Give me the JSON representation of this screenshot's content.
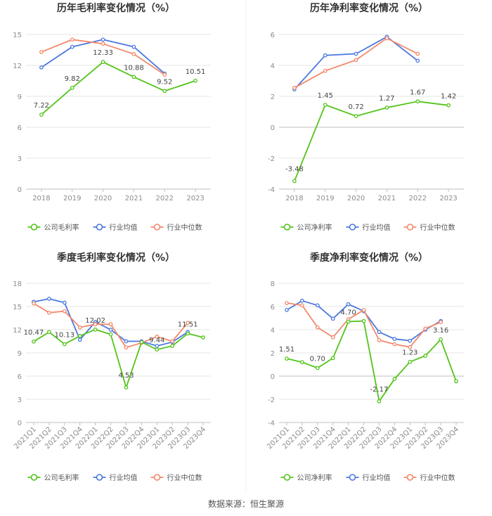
{
  "colors": {
    "company": "#52c41a",
    "industry_avg": "#4a78e0",
    "industry_median": "#f4886a",
    "grid": "#e6e6e6",
    "axis_text": "#8c8c8c",
    "title": "#333333"
  },
  "source": "数据来源：恒生聚源",
  "chart_data": [
    {
      "type": "line",
      "title": "历年毛利率变化情况（%）",
      "categories": [
        "2018",
        "2019",
        "2020",
        "2021",
        "2022",
        "2023"
      ],
      "ylim": [
        0,
        15
      ],
      "yticks": [
        0,
        3,
        6,
        9,
        12,
        15
      ],
      "grid": true,
      "legend_position": "bottom",
      "series": [
        {
          "name": "公司毛利率",
          "values": [
            7.22,
            9.82,
            12.33,
            10.88,
            9.52,
            10.51
          ],
          "labels": [
            "7.22",
            "9.82",
            "12.33",
            "10.88",
            "9.52",
            "10.51"
          ]
        },
        {
          "name": "行业均值",
          "values": [
            11.8,
            13.8,
            14.5,
            13.8,
            11.2,
            null
          ]
        },
        {
          "name": "行业中位数",
          "values": [
            13.3,
            14.5,
            14.1,
            13.1,
            11.1,
            null
          ]
        }
      ]
    },
    {
      "type": "line",
      "title": "历年净利率变化情况（%）",
      "categories": [
        "2018",
        "2019",
        "2020",
        "2021",
        "2022",
        "2023"
      ],
      "ylim": [
        -4,
        6
      ],
      "yticks": [
        -4,
        -2,
        0,
        2,
        4,
        6
      ],
      "grid": true,
      "legend_position": "bottom",
      "series": [
        {
          "name": "公司净利率",
          "values": [
            -3.48,
            1.45,
            0.72,
            1.27,
            1.67,
            1.42
          ],
          "labels": [
            "-3.48",
            "1.45",
            "0.72",
            "1.27",
            "1.67",
            "1.42"
          ]
        },
        {
          "name": "行业均值",
          "values": [
            2.45,
            4.65,
            4.75,
            5.85,
            4.3,
            null
          ]
        },
        {
          "name": "行业中位数",
          "values": [
            2.55,
            3.65,
            4.35,
            5.75,
            4.75,
            null
          ]
        }
      ]
    },
    {
      "type": "line",
      "title": "季度毛利率变化情况（%）",
      "categories": [
        "2021Q1",
        "2021Q2",
        "2021Q3",
        "2021Q4",
        "2022Q1",
        "2022Q2",
        "2022Q3",
        "2022Q4",
        "2023Q1",
        "2023Q2",
        "2023Q3",
        "2023Q4"
      ],
      "ylim": [
        0,
        18
      ],
      "yticks": [
        0,
        3,
        6,
        9,
        12,
        15,
        18
      ],
      "grid": true,
      "legend_position": "bottom",
      "series": [
        {
          "name": "公司毛利率",
          "values": [
            10.47,
            11.7,
            10.13,
            11.2,
            12.02,
            11.4,
            4.53,
            10.4,
            9.44,
            9.9,
            11.51,
            11.0
          ],
          "labels": [
            "10.47",
            "",
            "10.13",
            "",
            "12.02",
            "",
            "4.53",
            "",
            "9.44",
            "",
            "11.51",
            ""
          ]
        },
        {
          "name": "行业均值",
          "values": [
            15.6,
            16.0,
            15.5,
            10.7,
            13.0,
            12.0,
            10.5,
            10.5,
            9.9,
            10.4,
            11.7,
            null
          ]
        },
        {
          "name": "行业中位数",
          "values": [
            15.4,
            14.2,
            14.4,
            12.3,
            12.7,
            12.7,
            9.7,
            10.3,
            11.1,
            10.5,
            12.9,
            null
          ]
        }
      ]
    },
    {
      "type": "line",
      "title": "季度净利率变化情况（%）",
      "categories": [
        "2021Q1",
        "2021Q2",
        "2021Q3",
        "2021Q4",
        "2022Q1",
        "2022Q2",
        "2022Q3",
        "2022Q4",
        "2023Q1",
        "2023Q2",
        "2023Q3",
        "2023Q4"
      ],
      "ylim": [
        -4,
        8
      ],
      "yticks": [
        -4,
        -2,
        0,
        2,
        4,
        6,
        8
      ],
      "grid": true,
      "legend_position": "bottom",
      "series": [
        {
          "name": "公司净利率",
          "values": [
            1.51,
            1.2,
            0.7,
            1.55,
            4.7,
            4.75,
            -2.17,
            -0.25,
            1.23,
            1.75,
            3.16,
            -0.45
          ],
          "labels": [
            "1.51",
            "",
            "0.70",
            "",
            "4.70",
            "",
            "-2.17",
            "",
            "1.23",
            "",
            "3.16",
            ""
          ]
        },
        {
          "name": "行业均值",
          "values": [
            5.7,
            6.5,
            6.1,
            4.95,
            6.2,
            5.6,
            3.8,
            3.2,
            3.05,
            4.0,
            4.75,
            null
          ]
        },
        {
          "name": "行业中位数",
          "values": [
            6.3,
            6.1,
            4.2,
            3.35,
            4.9,
            5.7,
            3.1,
            2.75,
            2.5,
            4.1,
            4.65,
            null
          ]
        }
      ]
    }
  ]
}
